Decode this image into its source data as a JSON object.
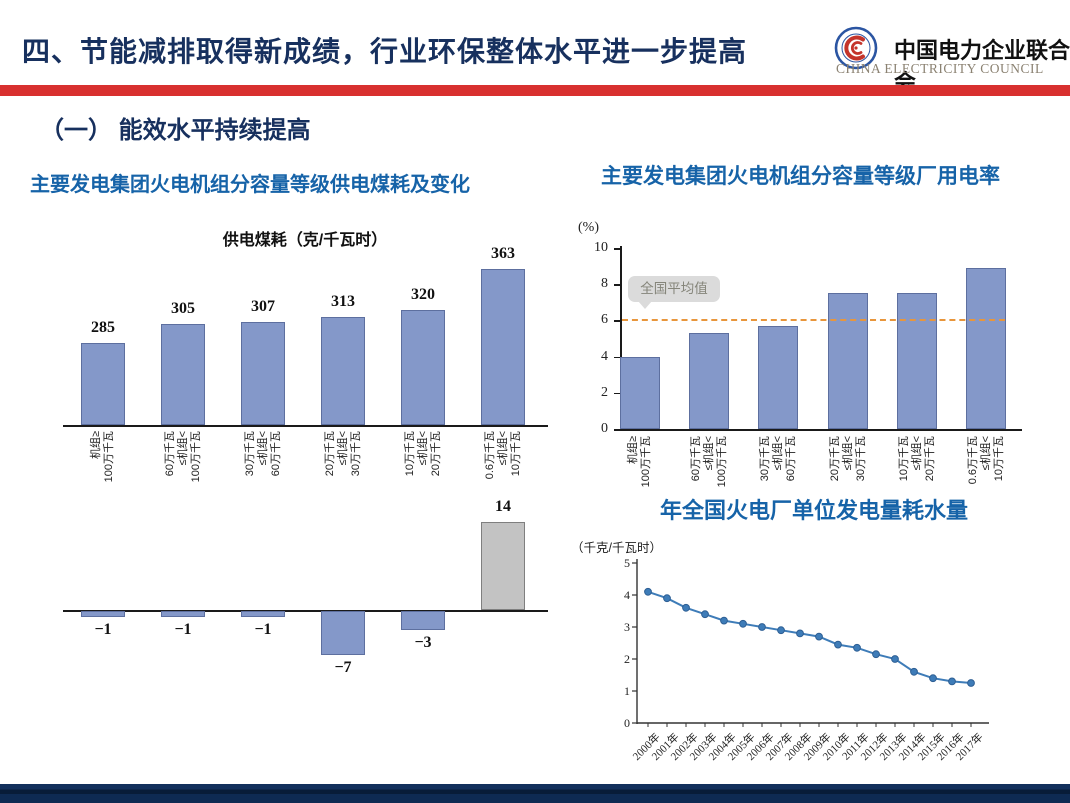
{
  "header": {
    "title": "四、节能减排取得新成绩，行业环保整体水平进一步提高",
    "logo_cn": "中国电力企业联合会",
    "logo_en": "CHINA ELECTRICITY COUNCIL"
  },
  "section_title": "（一） 能效水平持续提高",
  "titles": {
    "coal": "主要发电集团火电机组分容量等级供电煤耗及变化",
    "plant_power": "主要发电集团火电机组分容量等级厂用电率",
    "water": "年全国火电厂单位发电量耗水量"
  },
  "colors": {
    "accent_red": "#D8302F",
    "navy": "#17305E",
    "title_blue": "#1663A8",
    "bar_fill": "#8498C9",
    "bar_border": "#5D6F9F",
    "gray_bar_fill": "#C3C3C3",
    "gray_bar_border": "#7F7F7F",
    "avg_line_orange": "#E8963C",
    "line_blue": "#3E7CB8"
  },
  "categories": [
    [
      "机组≥",
      "100万千瓦"
    ],
    [
      "60万千瓦",
      "≤机组<",
      "100万千瓦"
    ],
    [
      "30万千瓦",
      "≤机组<",
      "60万千瓦"
    ],
    [
      "20万千瓦",
      "≤机组<",
      "30万千瓦"
    ],
    [
      "10万千瓦",
      "≤机组<",
      "20万千瓦"
    ],
    [
      "0.6万千瓦",
      "≤机组<",
      "10万千瓦"
    ]
  ],
  "chart_data": [
    {
      "id": "coal_consumption",
      "type": "bar",
      "title": "供电煤耗（克/千瓦时）",
      "values": [
        285,
        305,
        307,
        313,
        320,
        363
      ],
      "value_labels": [
        "285",
        "305",
        "307",
        "313",
        "320",
        "363"
      ],
      "axis_start_value": 200,
      "grid": false
    },
    {
      "id": "coal_consumption_change",
      "type": "bar",
      "values": [
        -1,
        -1,
        -1,
        -7,
        -3,
        14
      ],
      "value_labels": [
        "−1",
        "−1",
        "−1",
        "−7",
        "−3",
        "14"
      ],
      "last_bar_highlighted_gray": true,
      "grid": false
    },
    {
      "id": "plant_power_rate",
      "type": "bar",
      "ylabel": "(%)",
      "ylim": [
        0,
        10
      ],
      "yticks": [
        0,
        2,
        4,
        6,
        8,
        10
      ],
      "values": [
        4.0,
        5.3,
        5.7,
        7.5,
        7.5,
        8.9
      ],
      "avg_line": {
        "value": 6,
        "label": "全国平均值"
      },
      "grid": false
    },
    {
      "id": "water_consumption_per_kwh",
      "type": "line",
      "ylabel": "（千克/千瓦时）",
      "ylim": [
        0,
        5
      ],
      "yticks": [
        0,
        1,
        2,
        3,
        4,
        5
      ],
      "x": [
        "2000年",
        "2001年",
        "2002年",
        "2003年",
        "2004年",
        "2005年",
        "2006年",
        "2007年",
        "2008年",
        "2009年",
        "2010年",
        "2011年",
        "2012年",
        "2013年",
        "2014年",
        "2015年",
        "2016年",
        "2017年"
      ],
      "values": [
        4.1,
        3.9,
        3.6,
        3.4,
        3.2,
        3.1,
        3.0,
        2.9,
        2.8,
        2.7,
        2.45,
        2.35,
        2.15,
        2.0,
        1.6,
        1.4,
        1.3,
        1.25
      ],
      "grid": false
    }
  ]
}
